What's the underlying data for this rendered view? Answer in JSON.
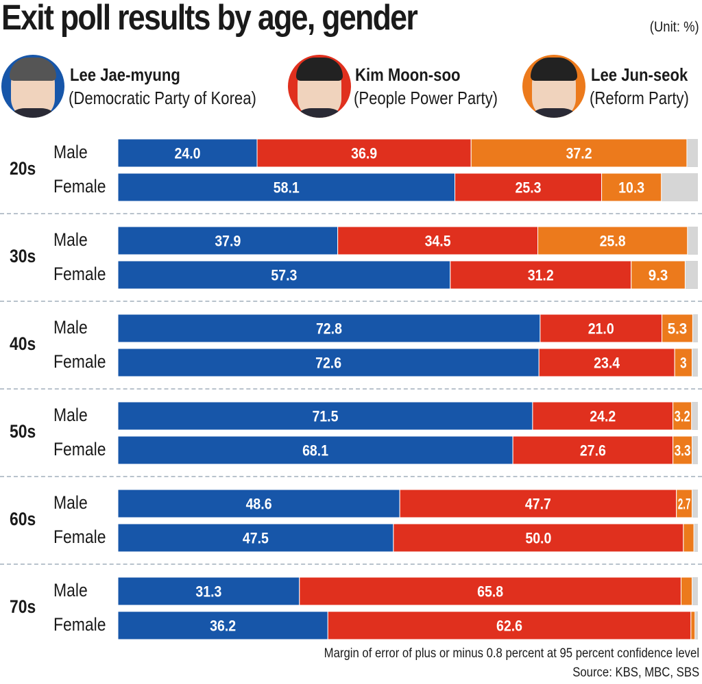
{
  "title": "Exit poll results by age, gender",
  "unit": "(Unit: %)",
  "candidates": [
    {
      "name": "Lee Jae-myung",
      "party": "(Democratic Party of Korea)",
      "color": "#1756a9"
    },
    {
      "name": "Kim Moon-soo",
      "party": "(People Power Party)",
      "color": "#e0301e"
    },
    {
      "name": "Lee Jun-seok",
      "party": "(Reform Party)",
      "color": "#ec7a1c"
    }
  ],
  "other_color": "#d6d6d6",
  "footer": {
    "note": "Margin of error of plus or minus 0.8 percent at 95 percent confidence level",
    "source": "Source: KBS, MBC, SBS"
  },
  "chart_data": {
    "type": "bar",
    "orientation": "horizontal",
    "stacked": true,
    "title": "Exit poll results by age, gender",
    "unit": "%",
    "xlim": [
      0,
      100
    ],
    "legend": [
      "Lee Jae-myung (Democratic Party of Korea)",
      "Kim Moon-soo (People Power Party)",
      "Lee Jun-seok (Reform Party)"
    ],
    "groups": [
      {
        "age": "20s",
        "rows": [
          {
            "gender": "Male",
            "values": [
              24.0,
              36.9,
              37.2
            ],
            "labels": [
              "24.0",
              "36.9",
              "37.2"
            ]
          },
          {
            "gender": "Female",
            "values": [
              58.1,
              25.3,
              10.3
            ],
            "labels": [
              "58.1",
              "25.3",
              "10.3"
            ]
          }
        ]
      },
      {
        "age": "30s",
        "rows": [
          {
            "gender": "Male",
            "values": [
              37.9,
              34.5,
              25.8
            ],
            "labels": [
              "37.9",
              "34.5",
              "25.8"
            ]
          },
          {
            "gender": "Female",
            "values": [
              57.3,
              31.2,
              9.3
            ],
            "labels": [
              "57.3",
              "31.2",
              "9.3"
            ]
          }
        ]
      },
      {
        "age": "40s",
        "rows": [
          {
            "gender": "Male",
            "values": [
              72.8,
              21.0,
              5.3
            ],
            "labels": [
              "72.8",
              "21.0",
              "5.3"
            ]
          },
          {
            "gender": "Female",
            "values": [
              72.6,
              23.4,
              3
            ],
            "labels": [
              "72.6",
              "23.4",
              "3"
            ]
          }
        ]
      },
      {
        "age": "50s",
        "rows": [
          {
            "gender": "Male",
            "values": [
              71.5,
              24.2,
              3.2
            ],
            "labels": [
              "71.5",
              "24.2",
              "3.2"
            ]
          },
          {
            "gender": "Female",
            "values": [
              68.1,
              27.6,
              3.3
            ],
            "labels": [
              "68.1",
              "27.6",
              "3.3"
            ]
          }
        ]
      },
      {
        "age": "60s",
        "rows": [
          {
            "gender": "Male",
            "values": [
              48.6,
              47.7,
              2.7
            ],
            "labels": [
              "48.6",
              "47.7",
              "2.7"
            ]
          },
          {
            "gender": "Female",
            "values": [
              47.5,
              50.0,
              1.8
            ],
            "labels": [
              "47.5",
              "50.0",
              ""
            ]
          }
        ]
      },
      {
        "age": "70s",
        "rows": [
          {
            "gender": "Male",
            "values": [
              31.3,
              65.8,
              1.9
            ],
            "labels": [
              "31.3",
              "65.8",
              ""
            ]
          },
          {
            "gender": "Female",
            "values": [
              36.2,
              62.6,
              0.7
            ],
            "labels": [
              "36.2",
              "62.6",
              ""
            ]
          }
        ]
      }
    ]
  }
}
